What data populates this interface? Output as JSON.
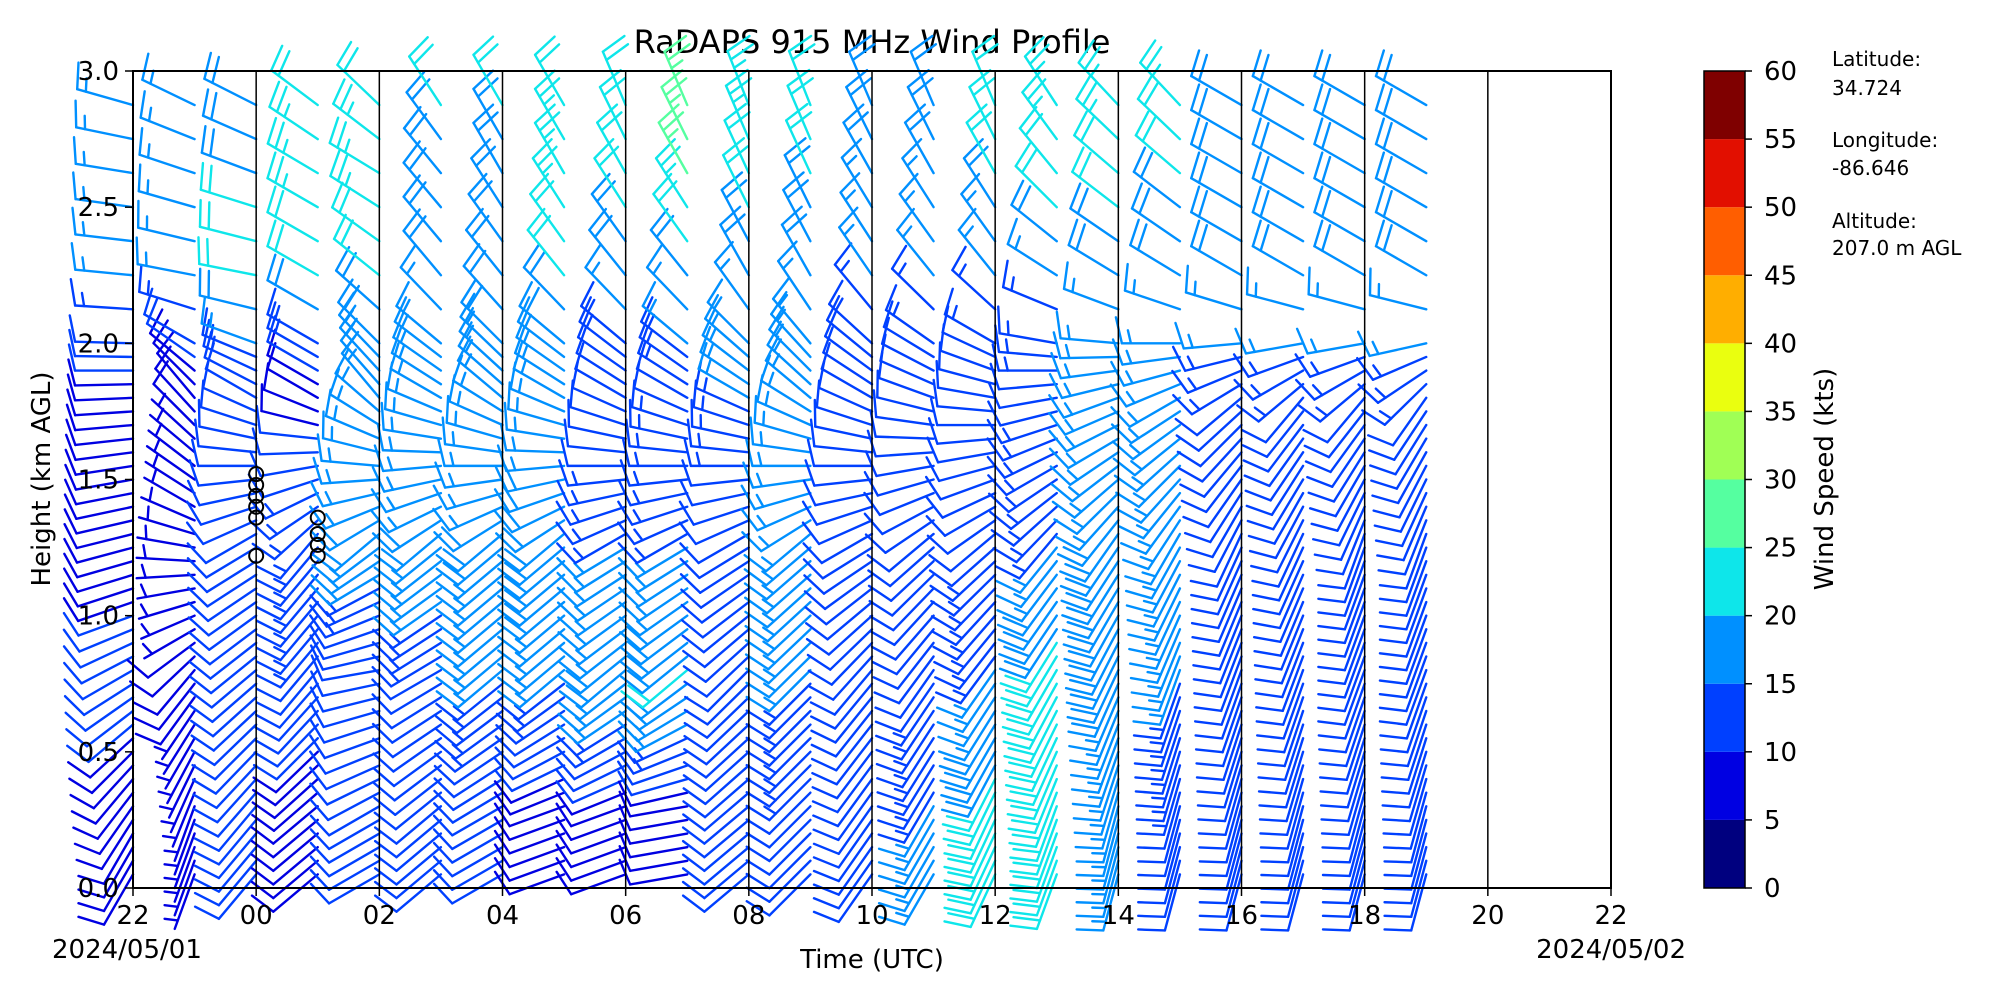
{
  "chart_data": {
    "type": "wind barbs",
    "title": "RaDAPS 915 MHz Wind Profile",
    "xlabel": "Time (UTC)",
    "ylabel": "Height (km AGL)",
    "x_tick_labels": [
      "22",
      "00",
      "02",
      "04",
      "06",
      "08",
      "10",
      "12",
      "14",
      "16",
      "18",
      "20",
      "22"
    ],
    "x_range_hours_from_start": [
      0,
      24
    ],
    "start_date_label": "2024/05/01",
    "end_date_label": "2024/05/02",
    "y_ticks": [
      "0.0",
      "0.5",
      "1.0",
      "1.5",
      "2.0",
      "2.5",
      "3.0"
    ],
    "ylim": [
      0,
      3.0
    ],
    "colorbar": {
      "label": "Wind Speed (kts)",
      "ticks": [
        "0",
        "5",
        "10",
        "15",
        "20",
        "25",
        "30",
        "35",
        "40",
        "45",
        "50",
        "55",
        "60"
      ],
      "colors": [
        "#00007f",
        "#0000e2",
        "#0040ff",
        "#0090ff",
        "#0ee6ea",
        "#55ffa0",
        "#a0ff55",
        "#eaff0f",
        "#ffae00",
        "#ff5e00",
        "#e20f00",
        "#7f0000"
      ]
    },
    "station": {
      "latitude_label": "Latitude:",
      "latitude": "34.724",
      "longitude_label": "Longitude:",
      "longitude": "-86.646",
      "altitude_label": "Altitude:",
      "altitude": "207.0 m AGL"
    },
    "profiles": [
      {
        "hour": 0.0,
        "levels": [
          [
            0.2,
            8,
            210
          ],
          [
            0.6,
            10,
            230
          ],
          [
            1.0,
            10,
            250
          ],
          [
            1.5,
            8,
            260
          ],
          [
            1.9,
            10,
            270
          ],
          [
            2.2,
            15,
            275
          ],
          [
            2.7,
            15,
            280
          ],
          [
            3.0,
            15,
            290
          ]
        ]
      },
      {
        "hour": 1.0,
        "levels": [
          [
            0.3,
            6,
            200
          ],
          [
            0.8,
            8,
            220
          ],
          [
            1.4,
            6,
            300
          ],
          [
            1.8,
            8,
            320
          ],
          [
            2.2,
            15,
            280
          ],
          [
            2.7,
            15,
            290
          ],
          [
            3.0,
            15,
            300
          ]
        ]
      },
      {
        "hour": 2.0,
        "levels": [
          [
            0.3,
            12,
            220
          ],
          [
            0.8,
            12,
            230
          ],
          [
            1.3,
            10,
            240
          ],
          [
            1.8,
            10,
            300
          ],
          [
            2.2,
            20,
            280
          ],
          [
            2.6,
            20,
            290
          ],
          [
            3.0,
            18,
            300
          ]
        ]
      },
      {
        "hour": 3.0,
        "levels": [
          [
            0.3,
            8,
            230
          ],
          [
            0.8,
            12,
            220
          ],
          [
            1.3,
            15,
            220
          ],
          [
            1.8,
            8,
            300
          ],
          [
            2.2,
            20,
            300
          ],
          [
            2.6,
            25,
            300
          ],
          [
            3.0,
            20,
            310
          ]
        ]
      },
      {
        "hour": 4.0,
        "levels": [
          [
            0.3,
            10,
            240
          ],
          [
            0.8,
            10,
            260
          ],
          [
            1.3,
            18,
            230
          ],
          [
            1.8,
            15,
            320
          ],
          [
            2.2,
            20,
            310
          ],
          [
            2.6,
            25,
            300
          ],
          [
            3.0,
            20,
            320
          ]
        ]
      },
      {
        "hour": 5.0,
        "levels": [
          [
            0.3,
            10,
            230
          ],
          [
            0.8,
            12,
            240
          ],
          [
            1.3,
            18,
            230
          ],
          [
            1.8,
            15,
            300
          ],
          [
            2.2,
            18,
            320
          ],
          [
            2.6,
            18,
            320
          ],
          [
            3.0,
            22,
            330
          ]
        ]
      },
      {
        "hour": 6.0,
        "levels": [
          [
            0.3,
            10,
            240
          ],
          [
            0.8,
            15,
            230
          ],
          [
            1.3,
            18,
            230
          ],
          [
            1.8,
            15,
            310
          ],
          [
            2.2,
            20,
            320
          ],
          [
            2.6,
            18,
            330
          ],
          [
            3.0,
            22,
            330
          ]
        ]
      },
      {
        "hour": 7.0,
        "levels": [
          [
            0.3,
            8,
            250
          ],
          [
            0.8,
            15,
            230
          ],
          [
            1.3,
            20,
            230
          ],
          [
            1.8,
            15,
            300
          ],
          [
            2.2,
            20,
            320
          ],
          [
            2.6,
            25,
            330
          ],
          [
            3.0,
            20,
            330
          ]
        ]
      },
      {
        "hour": 8.0,
        "levels": [
          [
            0.3,
            8,
            250
          ],
          [
            0.8,
            18,
            230
          ],
          [
            1.3,
            15,
            240
          ],
          [
            1.8,
            10,
            300
          ],
          [
            2.2,
            18,
            320
          ],
          [
            2.6,
            22,
            330
          ],
          [
            3.0,
            22,
            340
          ]
        ]
      },
      {
        "hour": 9.0,
        "levels": [
          [
            0.3,
            8,
            260
          ],
          [
            0.8,
            20,
            230
          ],
          [
            1.3,
            15,
            240
          ],
          [
            1.8,
            12,
            300
          ],
          [
            2.2,
            18,
            320
          ],
          [
            2.6,
            25,
            330
          ],
          [
            3.0,
            25,
            340
          ]
        ]
      },
      {
        "hour": 10.0,
        "levels": [
          [
            0.3,
            10,
            230
          ],
          [
            0.8,
            12,
            225
          ],
          [
            1.3,
            10,
            240
          ],
          [
            1.8,
            15,
            300
          ],
          [
            2.2,
            18,
            330
          ],
          [
            2.6,
            22,
            335
          ],
          [
            3.0,
            25,
            340
          ]
        ]
      },
      {
        "hour": 11.0,
        "levels": [
          [
            0.3,
            12,
            225
          ],
          [
            0.8,
            15,
            225
          ],
          [
            1.3,
            15,
            230
          ],
          [
            1.8,
            15,
            310
          ],
          [
            2.2,
            18,
            330
          ],
          [
            2.6,
            20,
            335
          ],
          [
            3.0,
            22,
            340
          ]
        ]
      },
      {
        "hour": 12.0,
        "levels": [
          [
            0.3,
            10,
            215
          ],
          [
            0.8,
            12,
            220
          ],
          [
            1.3,
            12,
            240
          ],
          [
            1.8,
            10,
            300
          ],
          [
            2.2,
            15,
            325
          ],
          [
            2.6,
            18,
            330
          ],
          [
            3.0,
            20,
            340
          ]
        ]
      },
      {
        "hour": 13.0,
        "levels": [
          [
            0.3,
            15,
            210
          ],
          [
            0.8,
            12,
            215
          ],
          [
            1.3,
            12,
            230
          ],
          [
            1.8,
            10,
            290
          ],
          [
            2.2,
            15,
            320
          ],
          [
            2.6,
            18,
            330
          ],
          [
            3.0,
            20,
            340
          ]
        ]
      },
      {
        "hour": 14.0,
        "levels": [
          [
            0.3,
            22,
            205
          ],
          [
            0.8,
            15,
            215
          ],
          [
            1.3,
            12,
            230
          ],
          [
            1.8,
            10,
            280
          ],
          [
            2.2,
            15,
            320
          ],
          [
            2.6,
            20,
            330
          ],
          [
            3.0,
            22,
            340
          ]
        ]
      },
      {
        "hour": 15.0,
        "levels": [
          [
            0.3,
            20,
            200
          ],
          [
            0.8,
            22,
            210
          ],
          [
            1.3,
            15,
            220
          ],
          [
            1.8,
            12,
            260
          ],
          [
            2.2,
            15,
            300
          ],
          [
            2.6,
            22,
            320
          ],
          [
            3.0,
            25,
            330
          ]
        ]
      },
      {
        "hour": 16.0,
        "levels": [
          [
            0.3,
            15,
            195
          ],
          [
            0.8,
            18,
            205
          ],
          [
            1.3,
            18,
            215
          ],
          [
            1.8,
            15,
            250
          ],
          [
            2.2,
            18,
            300
          ],
          [
            2.6,
            22,
            310
          ],
          [
            3.0,
            25,
            320
          ]
        ]
      },
      {
        "hour": 17.0,
        "levels": [
          [
            0.3,
            12,
            195
          ],
          [
            0.8,
            15,
            200
          ],
          [
            1.3,
            15,
            210
          ],
          [
            1.8,
            15,
            240
          ],
          [
            2.2,
            18,
            300
          ],
          [
            2.6,
            20,
            310
          ],
          [
            3.0,
            25,
            320
          ]
        ]
      },
      {
        "hour": 18.0,
        "levels": [
          [
            0.3,
            12,
            195
          ],
          [
            0.8,
            12,
            200
          ],
          [
            1.3,
            12,
            205
          ],
          [
            1.8,
            12,
            230
          ],
          [
            2.2,
            18,
            300
          ],
          [
            2.6,
            18,
            300
          ],
          [
            3.0,
            18,
            300
          ]
        ]
      },
      {
        "hour": 19.0,
        "levels": [
          [
            0.3,
            12,
            195
          ],
          [
            0.8,
            12,
            200
          ],
          [
            1.3,
            12,
            205
          ],
          [
            1.8,
            12,
            220
          ],
          [
            2.2,
            18,
            300
          ],
          [
            2.6,
            18,
            300
          ],
          [
            3.0,
            18,
            300
          ]
        ]
      },
      {
        "hour": 20.0,
        "levels": [
          [
            0.3,
            12,
            195
          ],
          [
            0.8,
            12,
            200
          ],
          [
            1.3,
            12,
            200
          ],
          [
            1.8,
            12,
            220
          ],
          [
            2.2,
            18,
            300
          ],
          [
            2.6,
            18,
            300
          ],
          [
            3.0,
            18,
            300
          ]
        ]
      },
      {
        "hour": 21.0,
        "levels": [
          [
            0.3,
            12,
            195
          ],
          [
            0.8,
            12,
            200
          ],
          [
            1.3,
            12,
            200
          ],
          [
            1.8,
            12,
            215
          ],
          [
            2.2,
            18,
            300
          ],
          [
            2.6,
            18,
            300
          ],
          [
            3.0,
            18,
            300
          ]
        ]
      }
    ],
    "calm_points": [
      {
        "hour": 2.0,
        "heights": [
          1.22,
          1.36,
          1.4,
          1.44,
          1.48,
          1.52
        ]
      },
      {
        "hour": 3.0,
        "heights": [
          1.22,
          1.26,
          1.3,
          1.36
        ]
      }
    ]
  }
}
